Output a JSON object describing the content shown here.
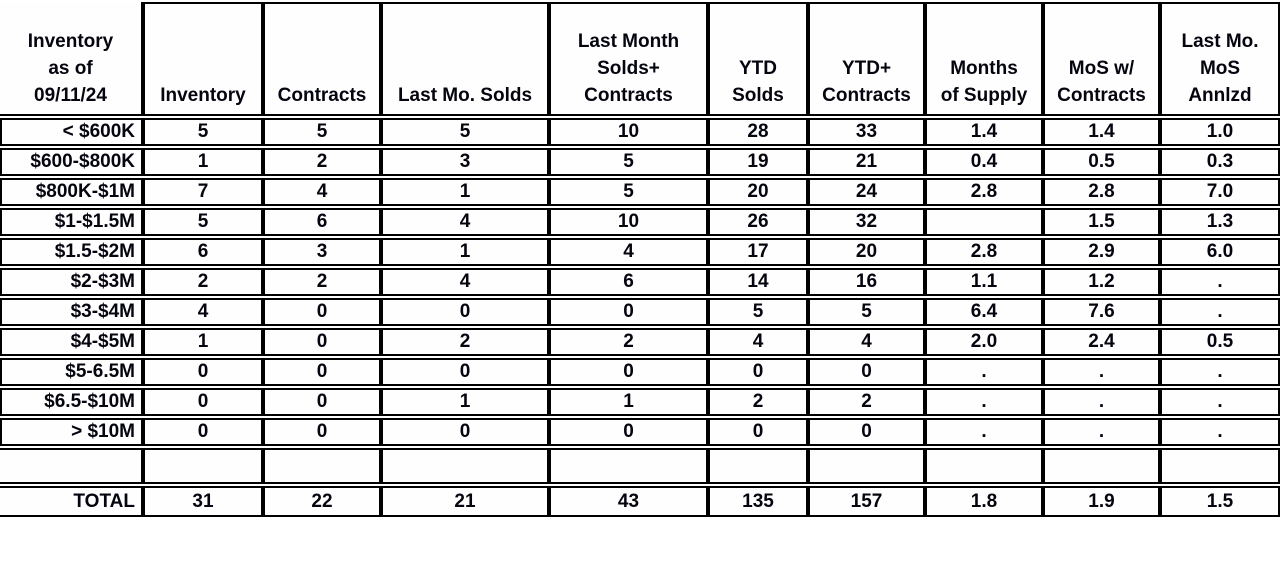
{
  "colors": {
    "border": "#000000",
    "text": "#050510",
    "background": "#ffffff"
  },
  "table": {
    "corner_header": "Inventory\nas of\n09/11/24",
    "columns": [
      "Inventory",
      "Contracts",
      "Last Mo. Solds",
      "Last Month\nSolds+\nContracts",
      "YTD\nSolds",
      "YTD+\nContracts",
      "Months\nof Supply",
      "MoS w/\nContracts",
      "Last Mo.\nMoS\nAnnlzd"
    ],
    "rows": [
      {
        "label": "< $600K",
        "values": [
          "5",
          "5",
          "5",
          "10",
          "28",
          "33",
          "1.4",
          "1.4",
          "1.0"
        ]
      },
      {
        "label": "$600-$800K",
        "values": [
          "1",
          "2",
          "3",
          "5",
          "19",
          "21",
          "0.4",
          "0.5",
          "0.3"
        ]
      },
      {
        "label": "$800K-$1M",
        "values": [
          "7",
          "4",
          "1",
          "5",
          "20",
          "24",
          "2.8",
          "2.8",
          "7.0"
        ]
      },
      {
        "label": "$1-$1.5M",
        "values": [
          "5",
          "6",
          "4",
          "10",
          "26",
          "32",
          "",
          "1.5",
          "1.3"
        ]
      },
      {
        "label": "$1.5-$2M",
        "values": [
          "6",
          "3",
          "1",
          "4",
          "17",
          "20",
          "2.8",
          "2.9",
          "6.0"
        ]
      },
      {
        "label": "$2-$3M",
        "values": [
          "2",
          "2",
          "4",
          "6",
          "14",
          "16",
          "1.1",
          "1.2",
          "."
        ]
      },
      {
        "label": "$3-$4M",
        "values": [
          "4",
          "0",
          "0",
          "0",
          "5",
          "5",
          "6.4",
          "7.6",
          "."
        ]
      },
      {
        "label": "$4-$5M",
        "values": [
          "1",
          "0",
          "2",
          "2",
          "4",
          "4",
          "2.0",
          "2.4",
          "0.5"
        ]
      },
      {
        "label": "$5-6.5M",
        "values": [
          "0",
          "0",
          "0",
          "0",
          "0",
          "0",
          ".",
          ".",
          "."
        ]
      },
      {
        "label": "$6.5-$10M",
        "values": [
          "0",
          "0",
          "1",
          "1",
          "2",
          "2",
          ".",
          ".",
          "."
        ]
      },
      {
        "label": "> $10M",
        "values": [
          "0",
          "0",
          "0",
          "0",
          "0",
          "0",
          ".",
          ".",
          "."
        ]
      }
    ],
    "spacer_row": {
      "label": "",
      "values": [
        "",
        "",
        "",
        "",
        "",
        "",
        "",
        "",
        ""
      ]
    },
    "total_row": {
      "label": "TOTAL",
      "values": [
        "31",
        "22",
        "21",
        "43",
        "135",
        "157",
        "1.8",
        "1.9",
        "1.5"
      ]
    }
  },
  "chart_data": {
    "type": "table",
    "title": "Inventory as of 09/11/24",
    "columns": [
      "Inventory as of 09/11/24",
      "Inventory",
      "Contracts",
      "Last Mo. Solds",
      "Last Month Solds+ Contracts",
      "YTD Solds",
      "YTD+ Contracts",
      "Months of Supply",
      "MoS w/ Contracts",
      "Last Mo. MoS Annlzd"
    ],
    "rows": [
      [
        "< $600K",
        "5",
        "5",
        "5",
        "10",
        "28",
        "33",
        "1.4",
        "1.4",
        "1.0"
      ],
      [
        "$600-$800K",
        "1",
        "2",
        "3",
        "5",
        "19",
        "21",
        "0.4",
        "0.5",
        "0.3"
      ],
      [
        "$800K-$1M",
        "7",
        "4",
        "1",
        "5",
        "20",
        "24",
        "2.8",
        "2.8",
        "7.0"
      ],
      [
        "$1-$1.5M",
        "5",
        "6",
        "4",
        "10",
        "26",
        "32",
        "",
        "1.5",
        "1.3"
      ],
      [
        "$1.5-$2M",
        "6",
        "3",
        "1",
        "4",
        "17",
        "20",
        "2.8",
        "2.9",
        "6.0"
      ],
      [
        "$2-$3M",
        "2",
        "2",
        "4",
        "6",
        "14",
        "16",
        "1.1",
        "1.2",
        "."
      ],
      [
        "$3-$4M",
        "4",
        "0",
        "0",
        "0",
        "5",
        "5",
        "6.4",
        "7.6",
        "."
      ],
      [
        "$4-$5M",
        "1",
        "0",
        "2",
        "2",
        "4",
        "4",
        "2.0",
        "2.4",
        "0.5"
      ],
      [
        "$5-6.5M",
        "0",
        "0",
        "0",
        "0",
        "0",
        "0",
        ".",
        ".",
        "."
      ],
      [
        "$6.5-$10M",
        "0",
        "0",
        "1",
        "1",
        "2",
        "2",
        ".",
        ".",
        "."
      ],
      [
        "> $10M",
        "0",
        "0",
        "0",
        "0",
        "0",
        "0",
        ".",
        ".",
        "."
      ],
      [
        "TOTAL",
        "31",
        "22",
        "21",
        "43",
        "135",
        "157",
        "1.8",
        "1.9",
        "1.5"
      ]
    ],
    "notes": "Grid on; bold black text on white; thick black cell borders; spacer row between > $10M and TOTAL"
  }
}
